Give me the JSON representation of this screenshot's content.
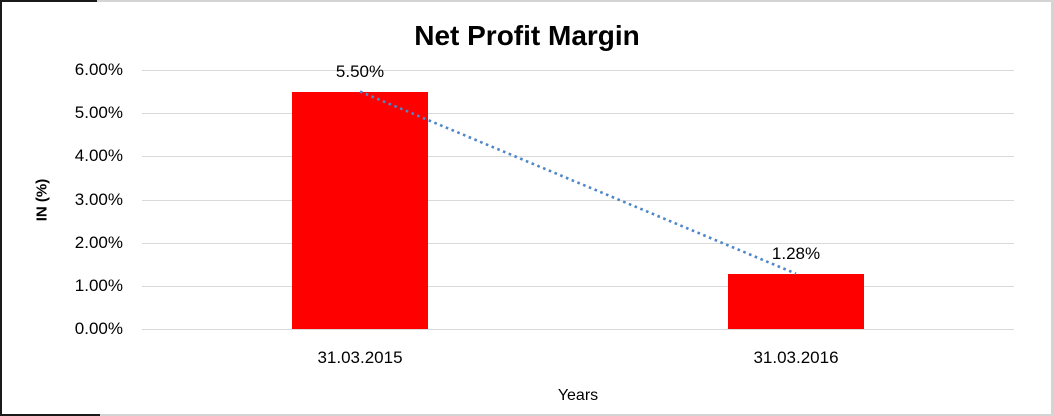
{
  "chart_data": {
    "type": "bar",
    "title": "Net Profit Margin",
    "categories": [
      "31.03.2015",
      "31.03.2016"
    ],
    "values": [
      5.5,
      1.28
    ],
    "data_labels": [
      "5.50%",
      "1.28%"
    ],
    "xlabel": "Years",
    "ylabel": "IN (%)",
    "ylim": [
      0,
      6
    ],
    "ytick_values": [
      0,
      1,
      2,
      3,
      4,
      5,
      6
    ],
    "ytick_labels": [
      "0.00%",
      "1.00%",
      "2.00%",
      "3.00%",
      "4.00%",
      "5.00%",
      "6.00%"
    ],
    "grid": true,
    "legend": "none",
    "colors": {
      "bar": "#ff0000",
      "trendline": "#4e86c8",
      "gridline": "#d9d9d9",
      "text": "#000000",
      "background": "#ffffff"
    },
    "trendline": {
      "type": "linear",
      "style": "dotted",
      "from_value": 5.5,
      "to_value": 1.28
    }
  }
}
